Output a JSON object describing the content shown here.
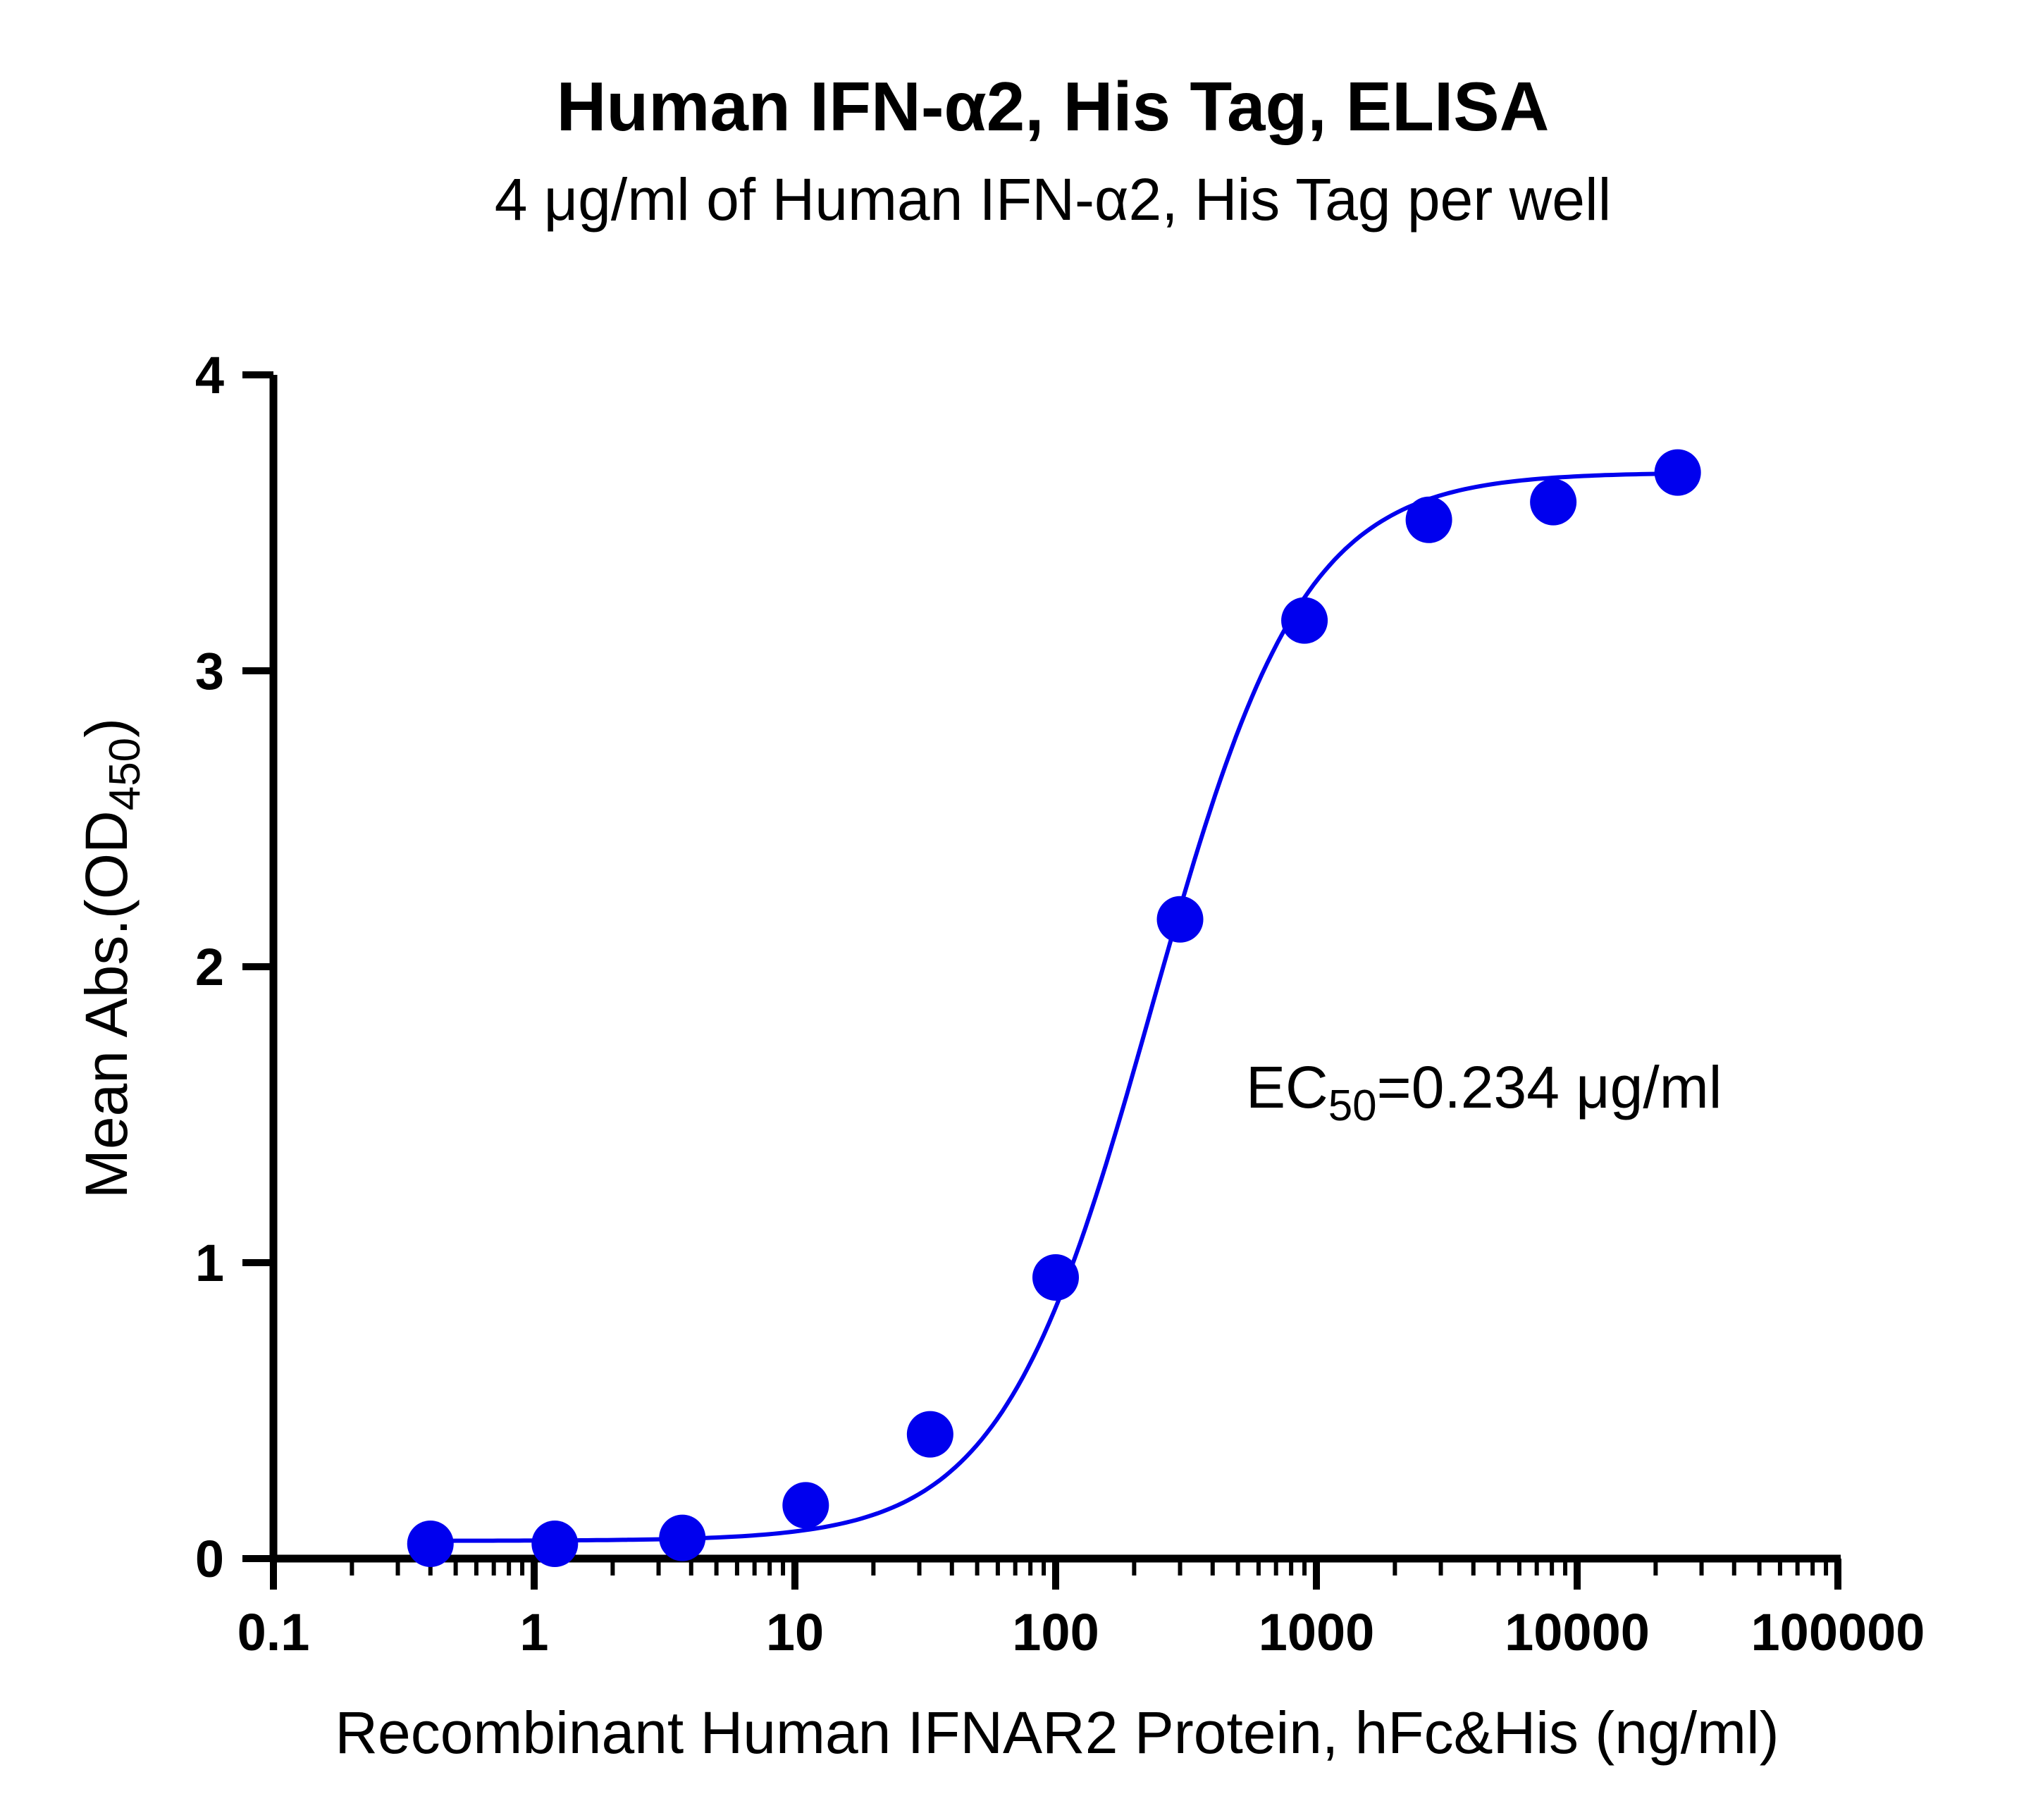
{
  "chart_data": {
    "type": "scatter",
    "title": "Human IFN-α2, His Tag, ELISA",
    "subtitle": "4 μg/ml of Human IFN-α2, His Tag per well",
    "xlabel": "Recombinant Human IFNAR2 Protein, hFc&His (ng/ml)",
    "ylabel": {
      "main": "Mean Abs.(OD",
      "subscript": "450",
      "close": ")"
    },
    "x_scale": "log",
    "xlim": [
      0.1,
      100000
    ],
    "ylim": [
      0,
      4
    ],
    "x_ticks": [
      {
        "value": 0.1,
        "label": "0.1"
      },
      {
        "value": 1,
        "label": "1"
      },
      {
        "value": 10,
        "label": "10"
      },
      {
        "value": 100,
        "label": "100"
      },
      {
        "value": 1000,
        "label": "1000"
      },
      {
        "value": 10000,
        "label": "10000"
      },
      {
        "value": 100000,
        "label": "100000"
      }
    ],
    "y_ticks": [
      {
        "value": 0,
        "label": "0"
      },
      {
        "value": 1,
        "label": "1"
      },
      {
        "value": 2,
        "label": "2"
      },
      {
        "value": 3,
        "label": "3"
      },
      {
        "value": 4,
        "label": "4"
      }
    ],
    "series": [
      {
        "color": "#0000ee",
        "points": [
          {
            "x": 0.4,
            "y": 0.05
          },
          {
            "x": 1.2,
            "y": 0.05
          },
          {
            "x": 3.7,
            "y": 0.07
          },
          {
            "x": 11,
            "y": 0.18
          },
          {
            "x": 33,
            "y": 0.42
          },
          {
            "x": 100,
            "y": 0.95
          },
          {
            "x": 300,
            "y": 2.16
          },
          {
            "x": 900,
            "y": 3.17
          },
          {
            "x": 2700,
            "y": 3.51
          },
          {
            "x": 8100,
            "y": 3.57
          },
          {
            "x": 24300,
            "y": 3.67
          }
        ],
        "fit": {
          "model": "4PL",
          "bottom": 0.06,
          "top": 3.67,
          "ec50": 234,
          "hill": 1.5
        }
      }
    ],
    "annotation": {
      "prefix": "EC",
      "subscript": "50",
      "suffix": "=0.234 μg/ml"
    },
    "grid": false,
    "legend": "none"
  }
}
